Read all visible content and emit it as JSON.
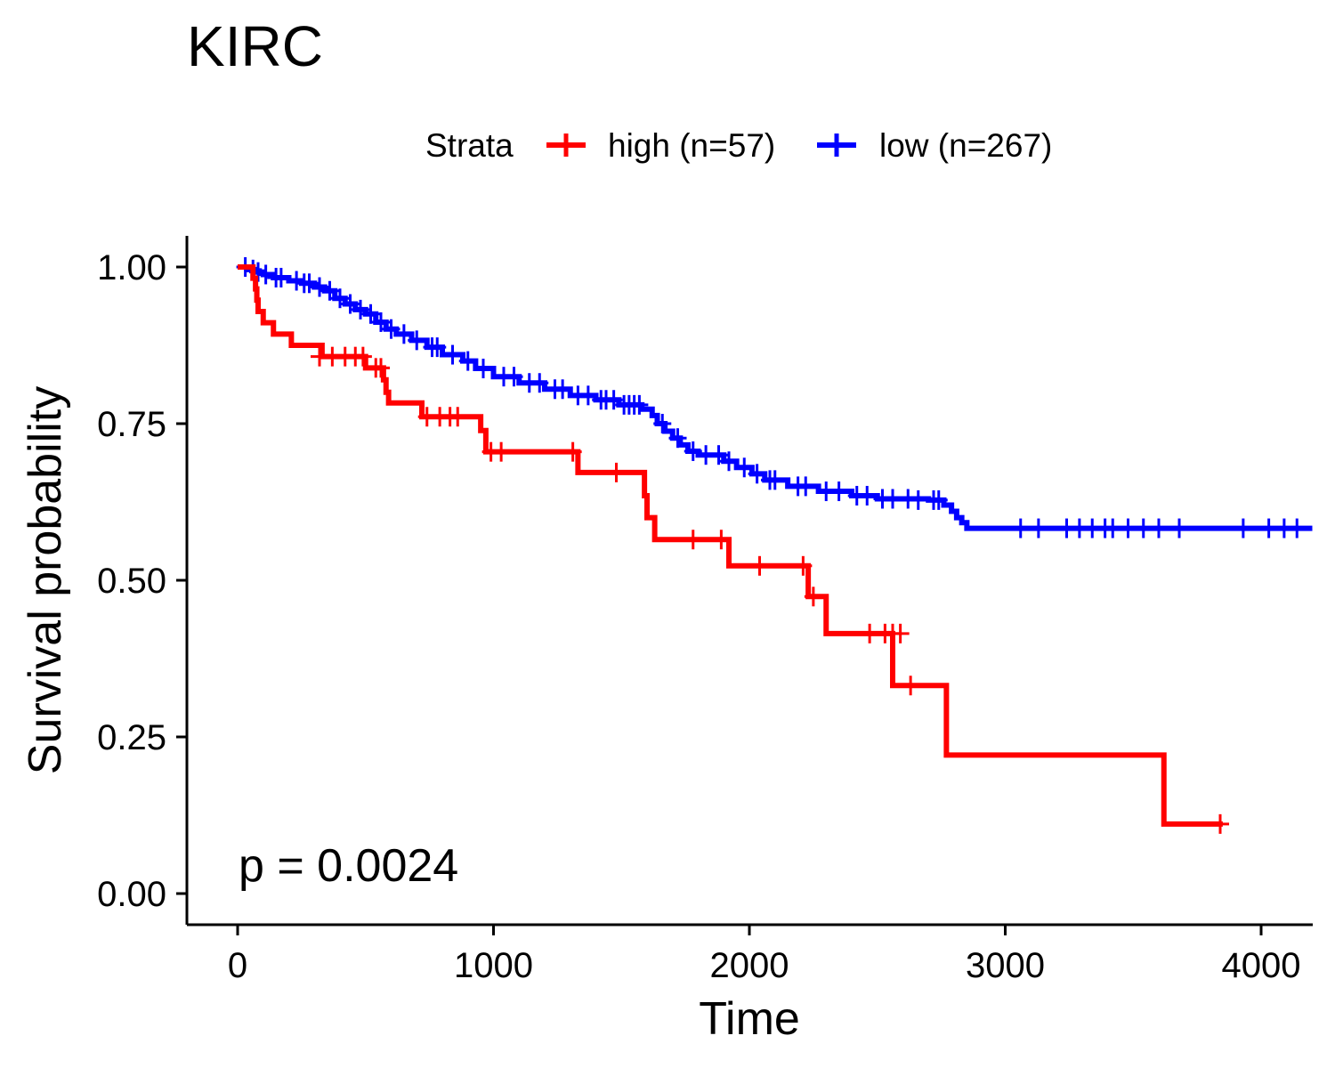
{
  "chart_data": {
    "type": "line",
    "subtype": "kaplan-meier",
    "title": "KIRC",
    "xlabel": "Time",
    "ylabel": "Survival probability",
    "xlim": [
      -200,
      4200
    ],
    "ylim": [
      -0.05,
      1.05
    ],
    "xticks": [
      0,
      1000,
      2000,
      3000,
      4000
    ],
    "xtick_labels": [
      "0",
      "1000",
      "2000",
      "3000",
      "4000"
    ],
    "yticks": [
      0,
      0.25,
      0.5,
      0.75,
      1.0
    ],
    "ytick_labels": [
      "0.00",
      "0.25",
      "0.50",
      "0.75",
      "1.00"
    ],
    "grid": false,
    "legend": {
      "title": "Strata",
      "placement": "top",
      "entries": [
        "high (n=57)",
        "low (n=267)"
      ]
    },
    "annotation": "p = 0.0024",
    "series": [
      {
        "name": "high (n=57)",
        "color": "#ff0000",
        "steps": [
          [
            0,
            1.0
          ],
          [
            60,
            0.982
          ],
          [
            70,
            0.965
          ],
          [
            75,
            0.947
          ],
          [
            80,
            0.929
          ],
          [
            100,
            0.911
          ],
          [
            140,
            0.893
          ],
          [
            210,
            0.875
          ],
          [
            330,
            0.857
          ],
          [
            500,
            0.839
          ],
          [
            570,
            0.82
          ],
          [
            580,
            0.8
          ],
          [
            590,
            0.783
          ],
          [
            720,
            0.761
          ],
          [
            950,
            0.739
          ],
          [
            970,
            0.705
          ],
          [
            1330,
            0.672
          ],
          [
            1590,
            0.635
          ],
          [
            1600,
            0.6
          ],
          [
            1630,
            0.565
          ],
          [
            1920,
            0.523
          ],
          [
            2230,
            0.474
          ],
          [
            2300,
            0.415
          ],
          [
            2560,
            0.332
          ],
          [
            2770,
            0.221
          ],
          [
            3620,
            0.111
          ],
          [
            3850,
            0.111
          ]
        ],
        "censor": [
          [
            320,
            0.857
          ],
          [
            370,
            0.857
          ],
          [
            420,
            0.857
          ],
          [
            460,
            0.857
          ],
          [
            490,
            0.857
          ],
          [
            540,
            0.839
          ],
          [
            560,
            0.839
          ],
          [
            740,
            0.761
          ],
          [
            790,
            0.761
          ],
          [
            830,
            0.761
          ],
          [
            860,
            0.761
          ],
          [
            990,
            0.705
          ],
          [
            1030,
            0.705
          ],
          [
            1310,
            0.705
          ],
          [
            1480,
            0.672
          ],
          [
            1780,
            0.565
          ],
          [
            1890,
            0.565
          ],
          [
            2040,
            0.523
          ],
          [
            2210,
            0.523
          ],
          [
            2250,
            0.474
          ],
          [
            2470,
            0.415
          ],
          [
            2530,
            0.415
          ],
          [
            2560,
            0.415
          ],
          [
            2590,
            0.415
          ],
          [
            2630,
            0.332
          ],
          [
            3840,
            0.111
          ]
        ]
      },
      {
        "name": "low (n=267)",
        "color": "#0000ff",
        "steps": [
          [
            0,
            1.0
          ],
          [
            40,
            0.996
          ],
          [
            70,
            0.992
          ],
          [
            100,
            0.988
          ],
          [
            140,
            0.983
          ],
          [
            200,
            0.978
          ],
          [
            250,
            0.974
          ],
          [
            300,
            0.968
          ],
          [
            340,
            0.962
          ],
          [
            380,
            0.95
          ],
          [
            420,
            0.941
          ],
          [
            460,
            0.932
          ],
          [
            500,
            0.925
          ],
          [
            540,
            0.912
          ],
          [
            580,
            0.901
          ],
          [
            620,
            0.893
          ],
          [
            680,
            0.883
          ],
          [
            740,
            0.872
          ],
          [
            800,
            0.86
          ],
          [
            880,
            0.85
          ],
          [
            930,
            0.838
          ],
          [
            1000,
            0.825
          ],
          [
            1100,
            0.815
          ],
          [
            1200,
            0.805
          ],
          [
            1300,
            0.795
          ],
          [
            1400,
            0.788
          ],
          [
            1490,
            0.78
          ],
          [
            1580,
            0.773
          ],
          [
            1620,
            0.763
          ],
          [
            1640,
            0.75
          ],
          [
            1670,
            0.738
          ],
          [
            1700,
            0.727
          ],
          [
            1730,
            0.716
          ],
          [
            1760,
            0.706
          ],
          [
            1800,
            0.7
          ],
          [
            1900,
            0.69
          ],
          [
            1950,
            0.68
          ],
          [
            2010,
            0.67
          ],
          [
            2060,
            0.66
          ],
          [
            2150,
            0.65
          ],
          [
            2270,
            0.642
          ],
          [
            2400,
            0.635
          ],
          [
            2500,
            0.63
          ],
          [
            2700,
            0.628
          ],
          [
            2760,
            0.62
          ],
          [
            2790,
            0.61
          ],
          [
            2810,
            0.6
          ],
          [
            2830,
            0.592
          ],
          [
            2850,
            0.583
          ],
          [
            4200,
            0.583
          ]
        ],
        "censor": [
          [
            30,
            1.0
          ],
          [
            60,
            0.996
          ],
          [
            80,
            0.992
          ],
          [
            110,
            0.988
          ],
          [
            150,
            0.983
          ],
          [
            170,
            0.983
          ],
          [
            230,
            0.978
          ],
          [
            260,
            0.974
          ],
          [
            280,
            0.974
          ],
          [
            320,
            0.968
          ],
          [
            360,
            0.962
          ],
          [
            400,
            0.95
          ],
          [
            440,
            0.941
          ],
          [
            480,
            0.932
          ],
          [
            520,
            0.925
          ],
          [
            560,
            0.912
          ],
          [
            600,
            0.901
          ],
          [
            650,
            0.893
          ],
          [
            700,
            0.883
          ],
          [
            760,
            0.872
          ],
          [
            780,
            0.872
          ],
          [
            840,
            0.86
          ],
          [
            900,
            0.85
          ],
          [
            960,
            0.838
          ],
          [
            1040,
            0.825
          ],
          [
            1080,
            0.825
          ],
          [
            1140,
            0.815
          ],
          [
            1180,
            0.815
          ],
          [
            1240,
            0.805
          ],
          [
            1270,
            0.805
          ],
          [
            1330,
            0.795
          ],
          [
            1370,
            0.795
          ],
          [
            1420,
            0.788
          ],
          [
            1440,
            0.788
          ],
          [
            1470,
            0.788
          ],
          [
            1510,
            0.78
          ],
          [
            1530,
            0.78
          ],
          [
            1550,
            0.78
          ],
          [
            1570,
            0.78
          ],
          [
            1660,
            0.75
          ],
          [
            1720,
            0.727
          ],
          [
            1780,
            0.706
          ],
          [
            1830,
            0.7
          ],
          [
            1880,
            0.7
          ],
          [
            1920,
            0.69
          ],
          [
            1980,
            0.68
          ],
          [
            2030,
            0.67
          ],
          [
            2080,
            0.66
          ],
          [
            2100,
            0.66
          ],
          [
            2190,
            0.65
          ],
          [
            2220,
            0.65
          ],
          [
            2300,
            0.642
          ],
          [
            2350,
            0.642
          ],
          [
            2420,
            0.635
          ],
          [
            2460,
            0.635
          ],
          [
            2520,
            0.63
          ],
          [
            2560,
            0.63
          ],
          [
            2620,
            0.63
          ],
          [
            2660,
            0.628
          ],
          [
            2720,
            0.628
          ],
          [
            2740,
            0.628
          ],
          [
            3060,
            0.583
          ],
          [
            3130,
            0.583
          ],
          [
            3240,
            0.583
          ],
          [
            3290,
            0.583
          ],
          [
            3340,
            0.583
          ],
          [
            3390,
            0.583
          ],
          [
            3420,
            0.583
          ],
          [
            3480,
            0.583
          ],
          [
            3540,
            0.583
          ],
          [
            3600,
            0.583
          ],
          [
            3680,
            0.583
          ],
          [
            3930,
            0.583
          ],
          [
            4030,
            0.583
          ],
          [
            4090,
            0.583
          ],
          [
            4140,
            0.583
          ]
        ]
      }
    ]
  }
}
